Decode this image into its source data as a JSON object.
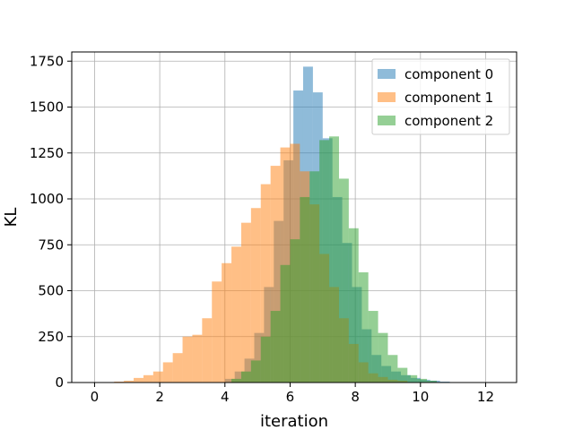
{
  "chart_data": {
    "type": "histogram",
    "xlabel": "iteration",
    "ylabel": "KL",
    "xlim": [
      -0.7,
      12.95
    ],
    "ylim": [
      0,
      1800
    ],
    "xticks": [
      0,
      2,
      4,
      6,
      8,
      10,
      12
    ],
    "yticks": [
      0,
      250,
      500,
      750,
      1000,
      1250,
      1500,
      1750
    ],
    "grid": true,
    "legend_position": "top-right",
    "bin_width": 0.3,
    "series": [
      {
        "name": "component 0",
        "color": "#1f77b4",
        "opacity": 0.5,
        "bin_start": 4.0,
        "counts": [
          20,
          60,
          130,
          270,
          520,
          880,
          1210,
          1590,
          1720,
          1580,
          1330,
          1010,
          760,
          520,
          290,
          150,
          90,
          60,
          40,
          25,
          15,
          10,
          5
        ]
      },
      {
        "name": "component 1",
        "color": "#ff7f0e",
        "opacity": 0.5,
        "bin_start": 0.6,
        "counts": [
          5,
          10,
          25,
          40,
          60,
          110,
          160,
          250,
          260,
          350,
          550,
          650,
          740,
          870,
          950,
          1080,
          1180,
          1280,
          1300,
          1150,
          970,
          700,
          520,
          350,
          210,
          110,
          50,
          30,
          15,
          10
        ]
      },
      {
        "name": "component 2",
        "color": "#2ca02c",
        "opacity": 0.5,
        "bin_start": 4.2,
        "counts": [
          20,
          60,
          120,
          250,
          390,
          640,
          780,
          1010,
          1150,
          1320,
          1340,
          1110,
          840,
          600,
          390,
          270,
          150,
          80,
          40,
          20,
          10
        ]
      }
    ]
  }
}
